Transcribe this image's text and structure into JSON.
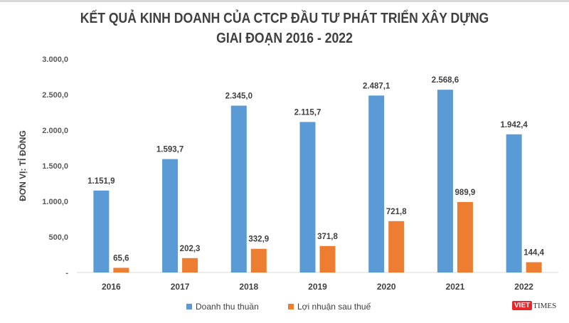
{
  "chart_data": {
    "type": "bar",
    "title": [
      "KẾT QUẢ KINH DOANH CỦA CTCP ĐẦU TƯ PHÁT TRIỂN XÂY DỰNG",
      "GIAI ĐOẠN 2016 - 2022"
    ],
    "ylabel": "ĐƠN VỊ: TỈ ĐỒNG",
    "xlabel": "",
    "ylim": [
      0,
      3000
    ],
    "yticks": [
      "-",
      "500,0",
      "1.000,0",
      "1.500,0",
      "2.000,0",
      "2.500,0",
      "3.000,0"
    ],
    "categories": [
      "2016",
      "2017",
      "2018",
      "2019",
      "2020",
      "2021",
      "2022"
    ],
    "series": [
      {
        "name": "Doanh thu thuần",
        "color": "#5b9bd5",
        "values": [
          1151.9,
          1593.7,
          2345.0,
          2115.7,
          2487.1,
          2568.6,
          1942.4
        ],
        "labels": [
          "1.151,9",
          "1.593,7",
          "2.345,0",
          "2.115,7",
          "2.487,1",
          "2.568,6",
          "1.942,4"
        ]
      },
      {
        "name": "Lợi nhuận sau thuế",
        "color": "#ed7d31",
        "values": [
          65.6,
          202.3,
          332.9,
          371.8,
          721.8,
          989.9,
          144.4
        ],
        "labels": [
          "65,6",
          "202,3",
          "332,9",
          "371,8",
          "721,8",
          "989,9",
          "144,4"
        ]
      }
    ],
    "grid": false,
    "legend": "bottom"
  },
  "logo": {
    "text1": "VIET",
    "text2": "TIMES"
  }
}
